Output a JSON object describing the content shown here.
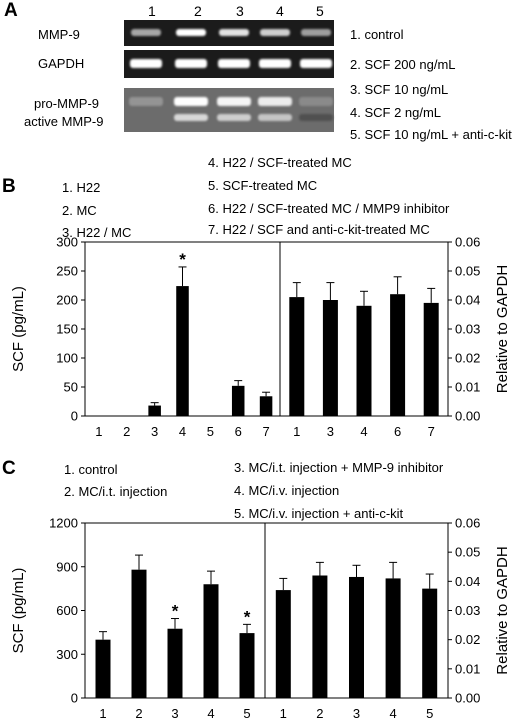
{
  "panels": {
    "a": {
      "label": "A",
      "lane_numbers": [
        "1",
        "2",
        "3",
        "4",
        "5"
      ],
      "gels": [
        {
          "name": "MMP-9",
          "bands": [
            0.55,
            1.0,
            0.85,
            0.75,
            0.5
          ]
        },
        {
          "name": "GAPDH",
          "bands": [
            1.0,
            1.0,
            1.0,
            1.0,
            1.0
          ]
        }
      ],
      "zymogram": {
        "labels": [
          "pro-MMP-9",
          "active MMP-9"
        ],
        "pro_bands": [
          0.45,
          1.0,
          0.95,
          0.9,
          0.4
        ],
        "active_bands": [
          0.0,
          0.8,
          0.75,
          0.7,
          0.1
        ]
      },
      "legend": [
        "1. control",
        "2. SCF 200 ng/mL",
        "3. SCF 10 ng/mL",
        "4. SCF 2 ng/mL",
        "5. SCF 10 ng/mL + anti-c-kit"
      ]
    },
    "b": {
      "label": "B",
      "legend_left": [
        "1. H22",
        "2. MC",
        "3. H22 / MC"
      ],
      "legend_right": [
        "4. H22 / SCF-treated MC",
        "5. SCF-treated MC",
        "6. H22 / SCF-treated MC / MMP9 inhibitor",
        "7. H22 / SCF and anti-c-kit-treated MC"
      ]
    },
    "c": {
      "label": "C",
      "legend_left": [
        "1. control",
        "2. MC/i.t. injection"
      ],
      "legend_right": [
        "3. MC/i.t. injection + MMP-9 inhibitor",
        "4. MC/i.v. injection",
        "5. MC/i.v. injection + anti-c-kit"
      ]
    }
  },
  "chart_data": [
    {
      "type": "bar",
      "panel": "B",
      "ylabel": "SCF (pg/mL)",
      "y2label": "Relative to GAPDH",
      "left": {
        "categories": [
          "1",
          "2",
          "3",
          "4",
          "5",
          "6",
          "7"
        ],
        "values": [
          0,
          0,
          18,
          224,
          0,
          52,
          34
        ],
        "errors": [
          0,
          0,
          5,
          33,
          0,
          9,
          7
        ],
        "significant": [
          false,
          false,
          false,
          true,
          false,
          false,
          false
        ],
        "ylim": [
          0,
          300
        ],
        "yticks": [
          "0",
          "50",
          "100",
          "150",
          "200",
          "250",
          "300"
        ]
      },
      "right": {
        "categories": [
          "1",
          "3",
          "4",
          "6",
          "7"
        ],
        "values": [
          0.041,
          0.04,
          0.038,
          0.042,
          0.039
        ],
        "errors": [
          0.005,
          0.006,
          0.005,
          0.006,
          0.005
        ],
        "ylim": [
          0,
          0.06
        ],
        "yticks": [
          "0.00",
          "0.01",
          "0.02",
          "0.03",
          "0.04",
          "0.05",
          "0.06"
        ]
      }
    },
    {
      "type": "bar",
      "panel": "C",
      "ylabel": "SCF (pg/mL)",
      "y2label": "Relative to GAPDH",
      "left": {
        "categories": [
          "1",
          "2",
          "3",
          "4",
          "5"
        ],
        "values": [
          400,
          880,
          475,
          780,
          445
        ],
        "errors": [
          55,
          100,
          70,
          90,
          60
        ],
        "significant": [
          false,
          false,
          true,
          false,
          true
        ],
        "ylim": [
          0,
          1200
        ],
        "yticks": [
          "0",
          "300",
          "600",
          "900",
          "1200"
        ]
      },
      "right": {
        "categories": [
          "1",
          "2",
          "3",
          "4",
          "5"
        ],
        "values": [
          0.037,
          0.042,
          0.0415,
          0.041,
          0.0375
        ],
        "errors": [
          0.004,
          0.0045,
          0.004,
          0.0055,
          0.005
        ],
        "ylim": [
          0,
          0.06
        ],
        "yticks": [
          "0.00",
          "0.01",
          "0.02",
          "0.03",
          "0.04",
          "0.05",
          "0.06"
        ]
      }
    }
  ]
}
